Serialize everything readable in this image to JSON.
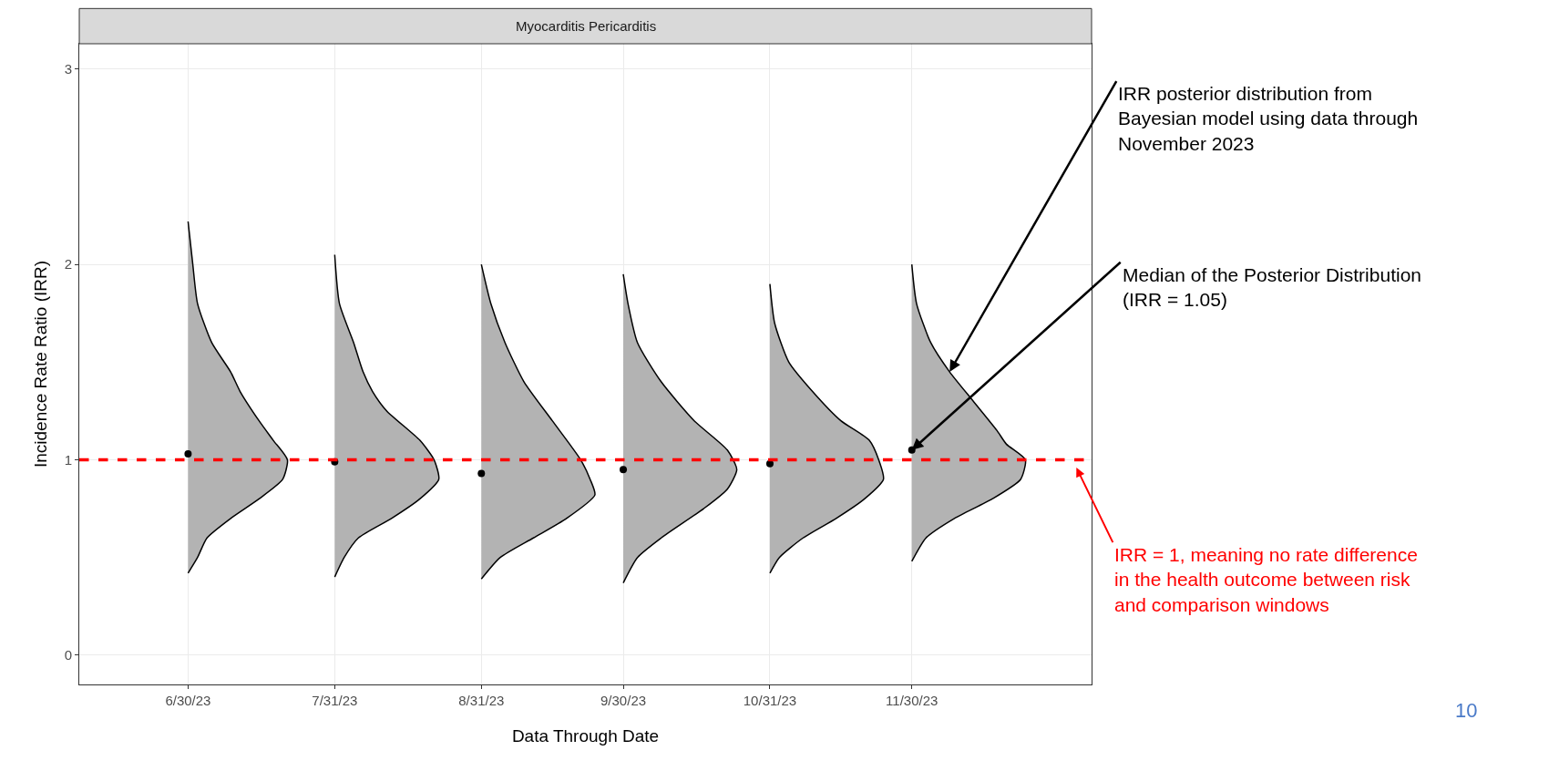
{
  "chart_data": {
    "type": "area",
    "title": "Myocarditis Pericarditis",
    "xlabel": "Data Through Date",
    "ylabel": "Incidence Rate Ratio (IRR)",
    "xlim": [
      "2023-06-07",
      "2024-01-07"
    ],
    "xticks": [
      {
        "value": "2023-06-30",
        "label": "6/30/23"
      },
      {
        "value": "2023-07-31",
        "label": "7/31/23"
      },
      {
        "value": "2023-08-31",
        "label": "8/31/23"
      },
      {
        "value": "2023-09-30",
        "label": "9/30/23"
      },
      {
        "value": "2023-10-31",
        "label": "10/31/23"
      },
      {
        "value": "2023-11-30",
        "label": "11/30/23"
      }
    ],
    "ylim": [
      -0.15,
      3.13
    ],
    "yticks": [
      0,
      1,
      2,
      3
    ],
    "grid": true,
    "series": [
      {
        "color": "#b3b3b3",
        "x": [
          "2023-06-30",
          "2023-07-01",
          "2023-07-02",
          "2023-07-05",
          "2023-07-09",
          "2023-07-11",
          "2023-07-15",
          "2023-07-18",
          "2023-07-21",
          "2023-07-20",
          "2023-07-15",
          "2023-07-09",
          "2023-07-04",
          "2023-07-02",
          "2023-06-30"
        ],
        "values": [
          2.22,
          2.0,
          1.8,
          1.6,
          1.45,
          1.35,
          1.2,
          1.1,
          1.0,
          0.9,
          0.8,
          0.7,
          0.6,
          0.5,
          0.42
        ]
      },
      {
        "color": "#b3b3b3",
        "x": [
          "2023-07-31",
          "2023-08-01",
          "2023-08-04",
          "2023-08-06",
          "2023-08-08",
          "2023-08-11",
          "2023-08-18",
          "2023-08-21",
          "2023-08-22",
          "2023-08-18",
          "2023-08-12",
          "2023-08-05",
          "2023-08-02",
          "2023-07-31"
        ],
        "values": [
          2.05,
          1.8,
          1.6,
          1.45,
          1.35,
          1.25,
          1.1,
          1.0,
          0.9,
          0.8,
          0.7,
          0.6,
          0.5,
          0.4
        ]
      },
      {
        "color": "#b3b3b3",
        "x": [
          "2023-08-31",
          "2023-09-02",
          "2023-09-05",
          "2023-09-09",
          "2023-09-15",
          "2023-09-21",
          "2023-09-23",
          "2023-09-24",
          "2023-09-18",
          "2023-09-11",
          "2023-09-04",
          "2023-08-31"
        ],
        "values": [
          2.0,
          1.8,
          1.6,
          1.4,
          1.2,
          1.0,
          0.9,
          0.82,
          0.7,
          0.6,
          0.5,
          0.39
        ]
      },
      {
        "color": "#b3b3b3",
        "x": [
          "2023-09-30",
          "2023-10-01",
          "2023-10-03",
          "2023-10-08",
          "2023-10-15",
          "2023-10-22",
          "2023-10-24",
          "2023-10-22",
          "2023-10-17",
          "2023-10-08",
          "2023-10-03",
          "2023-09-30"
        ],
        "values": [
          1.95,
          1.8,
          1.6,
          1.4,
          1.2,
          1.05,
          0.95,
          0.85,
          0.75,
          0.6,
          0.5,
          0.37
        ]
      },
      {
        "color": "#b3b3b3",
        "x": [
          "2023-10-31",
          "2023-11-01",
          "2023-11-04",
          "2023-11-09",
          "2023-11-15",
          "2023-11-21",
          "2023-11-23",
          "2023-11-24",
          "2023-11-20",
          "2023-11-14",
          "2023-11-07",
          "2023-11-02",
          "2023-10-31"
        ],
        "values": [
          1.9,
          1.7,
          1.5,
          1.35,
          1.2,
          1.1,
          1.0,
          0.9,
          0.8,
          0.7,
          0.6,
          0.5,
          0.42
        ]
      },
      {
        "color": "#b3b3b3",
        "x": [
          "2023-11-30",
          "2023-12-01",
          "2023-12-04",
          "2023-12-08",
          "2023-12-13",
          "2023-12-18",
          "2023-12-20",
          "2023-12-24",
          "2023-12-23",
          "2023-12-17",
          "2023-12-09",
          "2023-12-03",
          "2023-11-30"
        ],
        "values": [
          2.0,
          1.8,
          1.6,
          1.45,
          1.3,
          1.15,
          1.08,
          1.0,
          0.9,
          0.8,
          0.7,
          0.6,
          0.48
        ]
      },
      {
        "type": "scatter",
        "color": "#000000",
        "marker": "circle",
        "x": [
          "2023-06-30",
          "2023-07-31",
          "2023-08-31",
          "2023-09-30",
          "2023-10-31",
          "2023-11-30"
        ],
        "values": [
          1.03,
          0.99,
          0.93,
          0.95,
          0.98,
          1.05
        ]
      }
    ],
    "ref_lines": [
      {
        "axis": "y",
        "value": 1,
        "color": "#ff0000",
        "line_style": "dashed",
        "label": "IRR = 1, meaning no rate difference\nin the health outcome between risk\nand comparison windows"
      }
    ],
    "annotations": [
      {
        "text": "IRR posterior distribution from\nBayesian model using data through\nNovember 2023",
        "x": "2023-12-08",
        "y": 1.45
      },
      {
        "text": "Median of the Posterior Distribution\n(IRR = 1.05)",
        "x": "2023-11-30",
        "y": 1.05
      },
      "10"
    ]
  }
}
